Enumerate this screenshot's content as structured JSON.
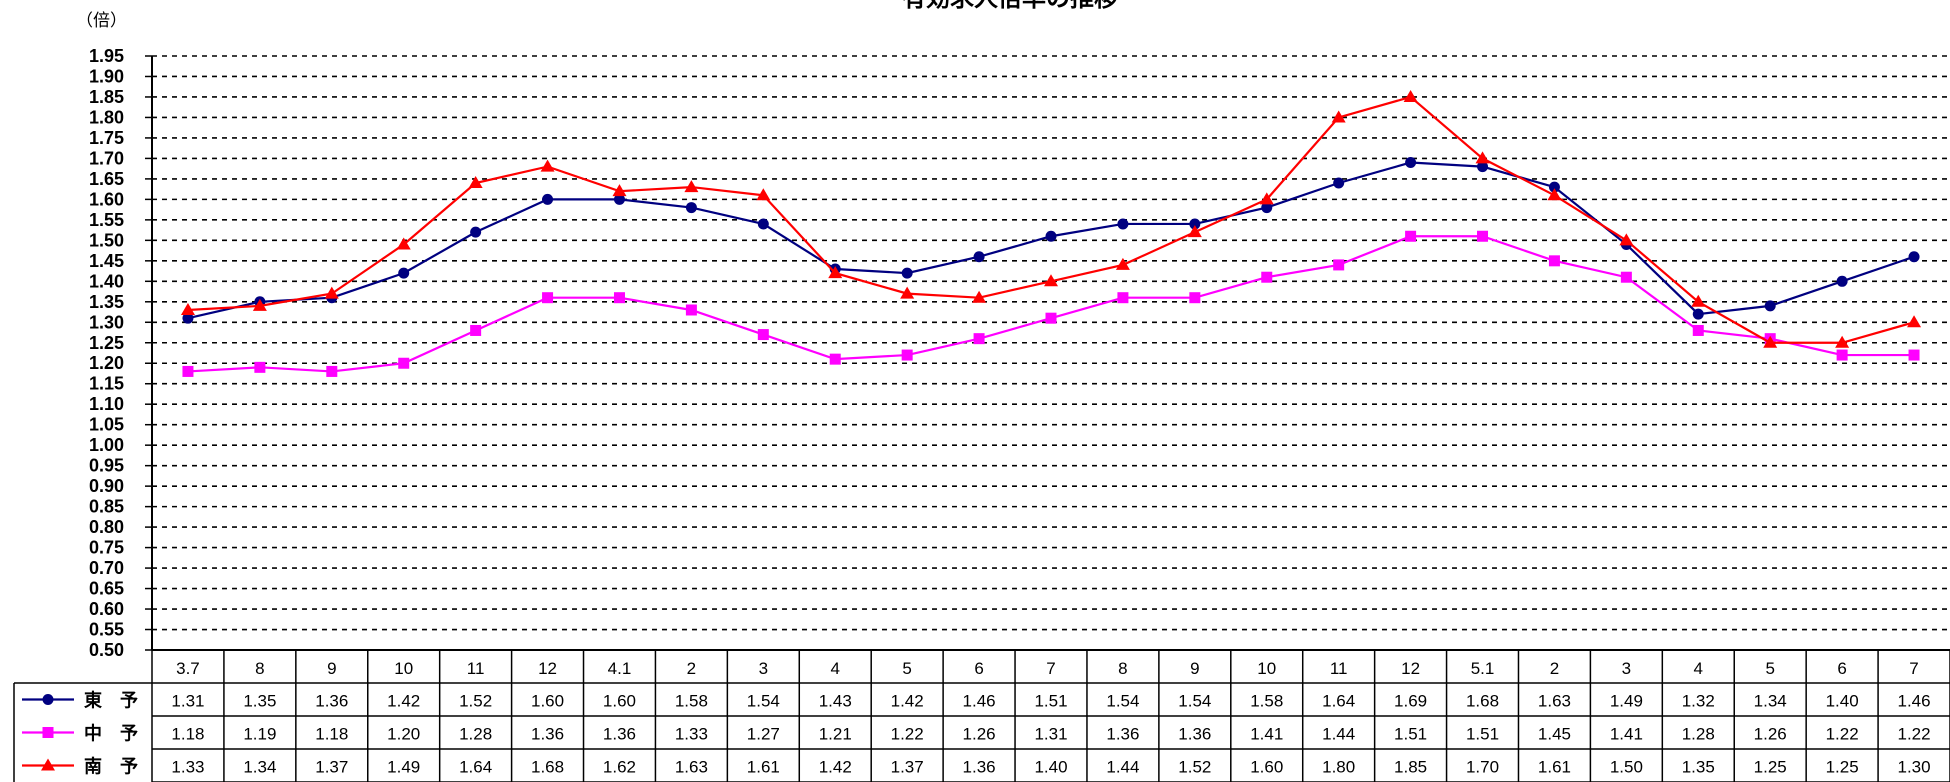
{
  "chart_data": {
    "type": "line",
    "title": "有効求人倍率の推移",
    "unit": "（倍）",
    "ylim": [
      0.5,
      1.95
    ],
    "y_step": 0.05,
    "grid": true,
    "categories": [
      "3.7",
      "8",
      "9",
      "10",
      "11",
      "12",
      "4.1",
      "2",
      "3",
      "4",
      "5",
      "6",
      "7",
      "8",
      "9",
      "10",
      "11",
      "12",
      "5.1",
      "2",
      "3",
      "4",
      "5",
      "6",
      "7"
    ],
    "series": [
      {
        "name": "東　予",
        "color": "#000080",
        "marker": "circle",
        "values": [
          1.31,
          1.35,
          1.36,
          1.42,
          1.52,
          1.6,
          1.6,
          1.58,
          1.54,
          1.43,
          1.42,
          1.46,
          1.51,
          1.54,
          1.54,
          1.58,
          1.64,
          1.69,
          1.68,
          1.63,
          1.49,
          1.32,
          1.34,
          1.4,
          1.46
        ]
      },
      {
        "name": "中　予",
        "color": "#FF00FF",
        "marker": "square",
        "values": [
          1.18,
          1.19,
          1.18,
          1.2,
          1.28,
          1.36,
          1.36,
          1.33,
          1.27,
          1.21,
          1.22,
          1.26,
          1.31,
          1.36,
          1.36,
          1.41,
          1.44,
          1.51,
          1.51,
          1.45,
          1.41,
          1.28,
          1.26,
          1.22,
          1.22
        ]
      },
      {
        "name": "南　予",
        "color": "#FF0000",
        "marker": "triangle",
        "values": [
          1.33,
          1.34,
          1.37,
          1.49,
          1.64,
          1.68,
          1.62,
          1.63,
          1.61,
          1.42,
          1.37,
          1.36,
          1.4,
          1.44,
          1.52,
          1.6,
          1.8,
          1.85,
          1.7,
          1.61,
          1.5,
          1.35,
          1.25,
          1.25,
          1.3
        ]
      }
    ]
  }
}
